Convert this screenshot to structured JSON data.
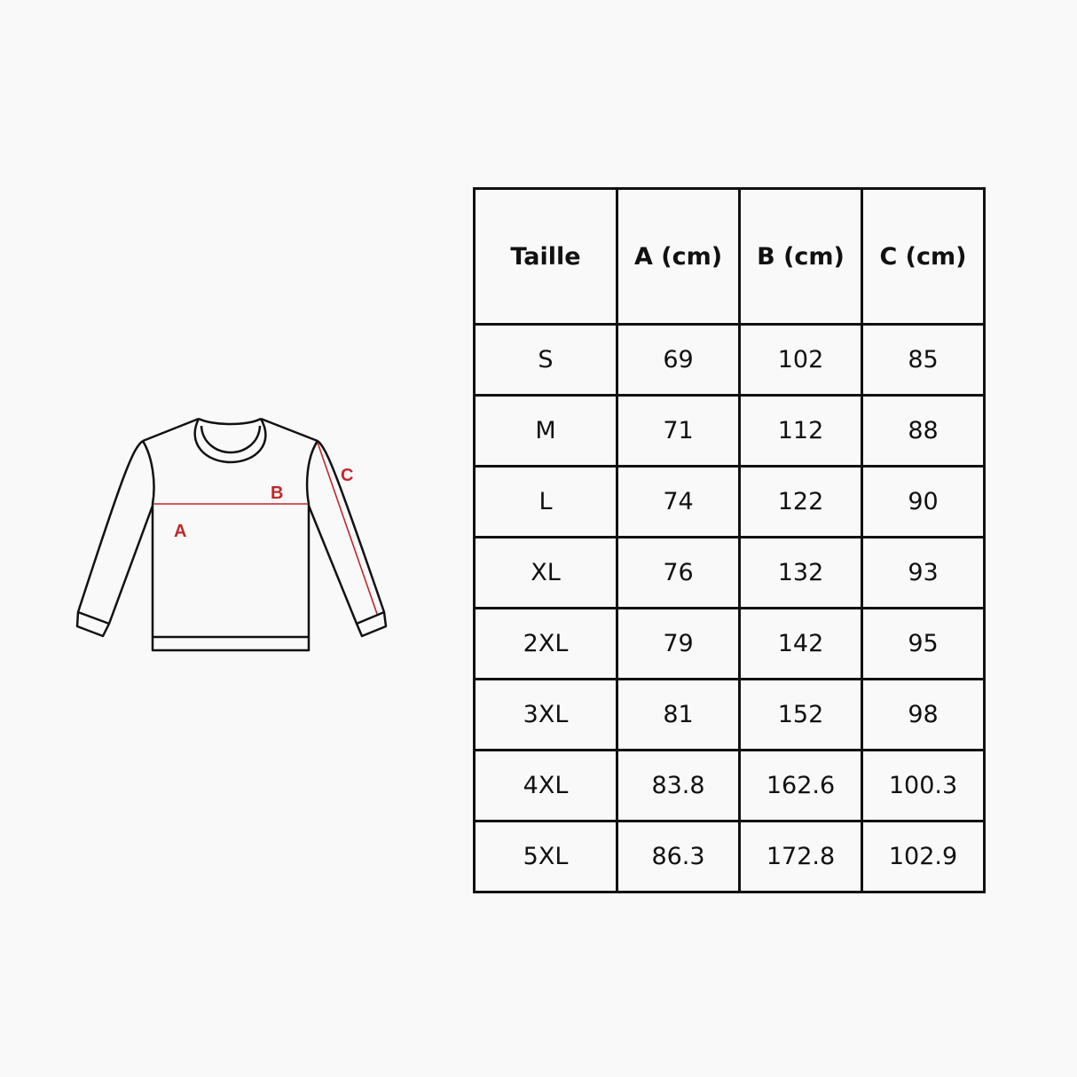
{
  "diagram": {
    "labels": {
      "a": "A",
      "b": "B",
      "c": "C"
    },
    "colors": {
      "outline": "#111111",
      "measure": "#c0282a"
    }
  },
  "table": {
    "headers": [
      "Taille",
      "A (cm)",
      "B (cm)",
      "C (cm)"
    ],
    "rows": [
      [
        "S",
        "69",
        "102",
        "85"
      ],
      [
        "M",
        "71",
        "112",
        "88"
      ],
      [
        "L",
        "74",
        "122",
        "90"
      ],
      [
        "XL",
        "76",
        "132",
        "93"
      ],
      [
        "2XL",
        "79",
        "142",
        "95"
      ],
      [
        "3XL",
        "81",
        "152",
        "98"
      ],
      [
        "4XL",
        "83.8",
        "162.6",
        "100.3"
      ],
      [
        "5XL",
        "86.3",
        "172.8",
        "102.9"
      ]
    ]
  }
}
